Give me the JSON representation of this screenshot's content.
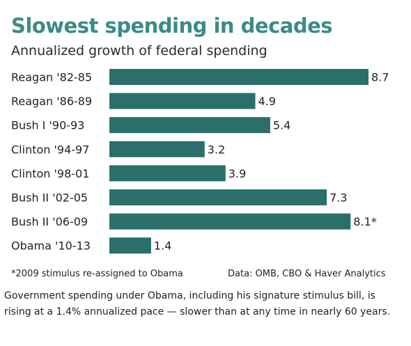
{
  "chart_data": {
    "type": "bar",
    "orientation": "horizontal",
    "title": "Slowest spending in decades",
    "subtitle": "Annualized growth of federal spending",
    "categories": [
      "Reagan '82-85",
      "Reagan '86-89",
      "Bush I '90-93",
      "Clinton '94-97",
      "Clinton '98-01",
      "Bush II '02-05",
      "Bush II '06-09",
      "Obama '10-13"
    ],
    "values": [
      8.7,
      4.9,
      5.4,
      3.2,
      3.9,
      7.3,
      8.1,
      1.4
    ],
    "value_labels": [
      "8.7",
      "4.9",
      "5.4",
      "3.2",
      "3.9",
      "7.3",
      "8.1*",
      "1.4"
    ],
    "xlim": [
      0,
      8.7
    ],
    "grid": false,
    "bar_color": "#2a6f6b",
    "title_color": "#3a8b86"
  },
  "footnote": "*2009 stimulus re-assigned to Obama",
  "source": "Data: OMB, CBO & Haver Analytics",
  "caption": "Government spending under Obama, including his signature stimulus bill, is rising at a 1.4% annualized pace — slower than at any time in nearly 60 years."
}
